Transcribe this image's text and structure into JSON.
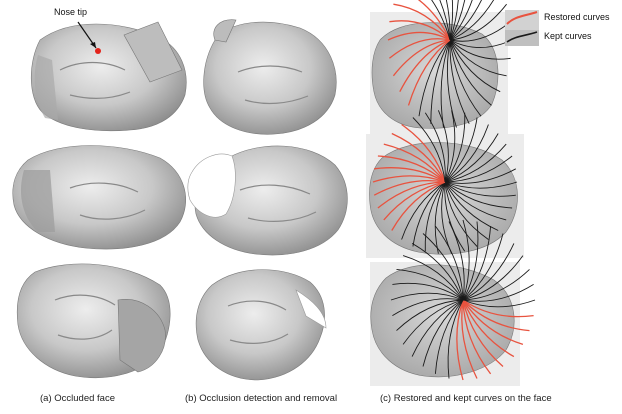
{
  "annotation": {
    "nose_tip": "Nose tip"
  },
  "legend": {
    "restored": "Restored curves",
    "kept": "Kept curves",
    "restored_color": "#e8533f",
    "kept_color": "#1a1a1a"
  },
  "captions": {
    "a": "(a) Occluded face",
    "b": "(b) Occlusion detection and removal",
    "c": "(c) Restored and kept curves on the face"
  },
  "colors": {
    "mesh_fill": "#c9c9c9",
    "mesh_shadow": "#8f8f8f",
    "panel_bg": "#e6e6e6",
    "nose_dot": "#e3241b"
  }
}
